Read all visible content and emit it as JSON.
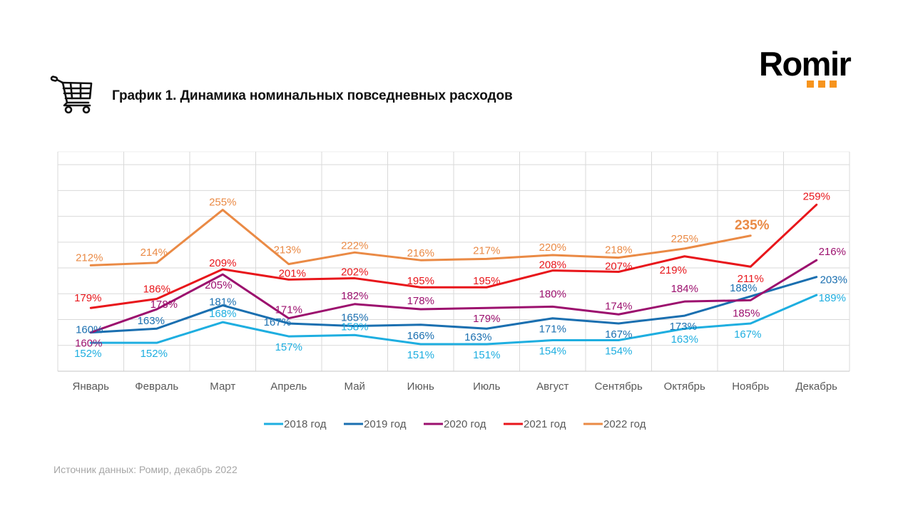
{
  "header": {
    "title": "График 1. Динамика номинальных повседневных расходов",
    "icon": "shopping-cart-icon",
    "logo_text": "Romir",
    "logo_accent_color": "#f7941d"
  },
  "footer": {
    "source": "Источник данных: Ромир, декабрь 2022"
  },
  "chart_data": {
    "type": "line",
    "title": "График 1. Динамика номинальных повседневных расходов",
    "xlabel": "",
    "ylabel": "",
    "ylim": [
      130,
      300
    ],
    "grid": true,
    "y_tick_labels_visible": false,
    "legend_position": "bottom",
    "categories": [
      "Январь",
      "Февраль",
      "Март",
      "Апрель",
      "Май",
      "Июнь",
      "Июль",
      "Август",
      "Сентябрь",
      "Октябрь",
      "Ноябрь",
      "Декабрь"
    ],
    "series": [
      {
        "name": "2018 год",
        "color": "#1eaee0",
        "values": [
          152,
          152,
          168,
          157,
          158,
          151,
          151,
          154,
          154,
          163,
          167,
          189
        ],
        "labels": [
          "152%",
          "152%",
          "168%",
          "157%",
          "158%",
          "151%",
          "151%",
          "154%",
          "154%",
          "163%",
          "167%",
          "189%"
        ]
      },
      {
        "name": "2019 год",
        "color": "#1a6fb0",
        "values": [
          160,
          163,
          181,
          167,
          165,
          166,
          163,
          171,
          167,
          173,
          188,
          203
        ],
        "labels": [
          "160%",
          "163%",
          "181%",
          "167%",
          "165%",
          "166%",
          "163%",
          "171%",
          "167%",
          "173%",
          "188%",
          "203%"
        ]
      },
      {
        "name": "2020 год",
        "color": "#9c106e",
        "values": [
          160,
          178,
          205,
          171,
          182,
          178,
          179,
          180,
          174,
          184,
          185,
          216
        ],
        "labels": [
          "160%",
          "178%",
          "205%",
          "171%",
          "182%",
          "178%",
          "179%",
          "180%",
          "174%",
          "184%",
          "185%",
          "216%"
        ]
      },
      {
        "name": "2021 год",
        "color": "#e8161b",
        "values": [
          179,
          186,
          209,
          201,
          202,
          195,
          195,
          208,
          207,
          219,
          211,
          259
        ],
        "labels": [
          "179%",
          "186%",
          "209%",
          "201%",
          "202%",
          "195%",
          "195%",
          "208%",
          "207%",
          "219%",
          "211%",
          "259%"
        ]
      },
      {
        "name": "2022 год",
        "color": "#ea8a45",
        "values": [
          212,
          214,
          255,
          213,
          222,
          216,
          217,
          220,
          218,
          225,
          235,
          null
        ],
        "labels": [
          "212%",
          "214%",
          "255%",
          "213%",
          "222%",
          "216%",
          "217%",
          "220%",
          "218%",
          "225%",
          "235%",
          null
        ],
        "highlighted_label_index": 10
      }
    ]
  }
}
